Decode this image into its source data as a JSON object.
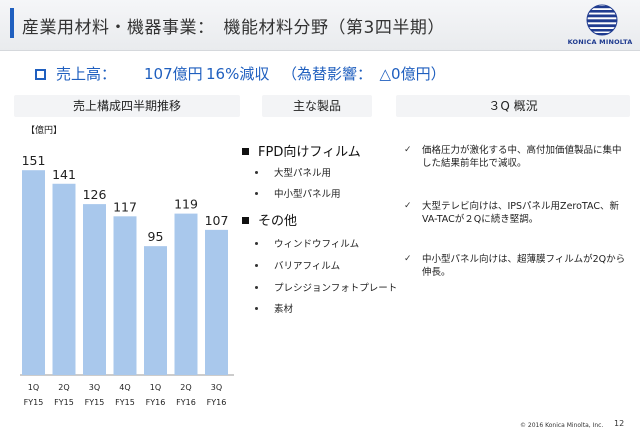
{
  "header": {
    "title": "産業用材料・機器事業：　機能材料分野（第3四半期）",
    "logo_text": "KONICA MINOLTA"
  },
  "summary": {
    "label": "売上高：",
    "value": "107億円",
    "change": "16%減収",
    "fx": "（為替影響：　△0億円）"
  },
  "sections": {
    "chart_title": "売上構成四半期推移",
    "products_title": "主な製品",
    "overview_title": "３Q 概況"
  },
  "chart_data": {
    "type": "bar",
    "unit": "【億円】",
    "categories": [
      "1Q FY15",
      "2Q FY15",
      "3Q FY15",
      "4Q FY15",
      "1Q FY16",
      "2Q FY16",
      "3Q FY16"
    ],
    "quarters": [
      "1Q",
      "2Q",
      "3Q",
      "4Q",
      "1Q",
      "2Q",
      "3Q"
    ],
    "fiscal_years": [
      "FY15",
      "FY15",
      "FY15",
      "FY15",
      "FY16",
      "FY16",
      "FY16"
    ],
    "values": [
      151,
      141,
      126,
      117,
      95,
      119,
      107
    ],
    "ylim": [
      0,
      160
    ],
    "bar_color": "#a9c8ec"
  },
  "products": {
    "group1": {
      "title": "FPD向けフィルム",
      "items": [
        "大型パネル用",
        "中小型パネル用"
      ]
    },
    "group2": {
      "title": "その他",
      "items": [
        "ウィンドウフィルム",
        "バリアフィルム",
        "プレシジョンフォトプレート",
        "素材"
      ]
    }
  },
  "overview": {
    "check_glyph": "✓",
    "items": [
      "価格圧力が激化する中、高付加価値製品に集中した結果前年比で減収。",
      "大型テレビ向けは、IPSパネル用ZeroTAC、新VA-TACが２Qに続き堅調。",
      "中小型パネル向けは、超薄膜フィルムが2Qから伸長。"
    ]
  },
  "footer": {
    "copyright": "© 2016 Konica Minolta, Inc.",
    "page": "12"
  },
  "colors": {
    "accent": "#1f5fbf",
    "bar": "#a9c8ec"
  }
}
